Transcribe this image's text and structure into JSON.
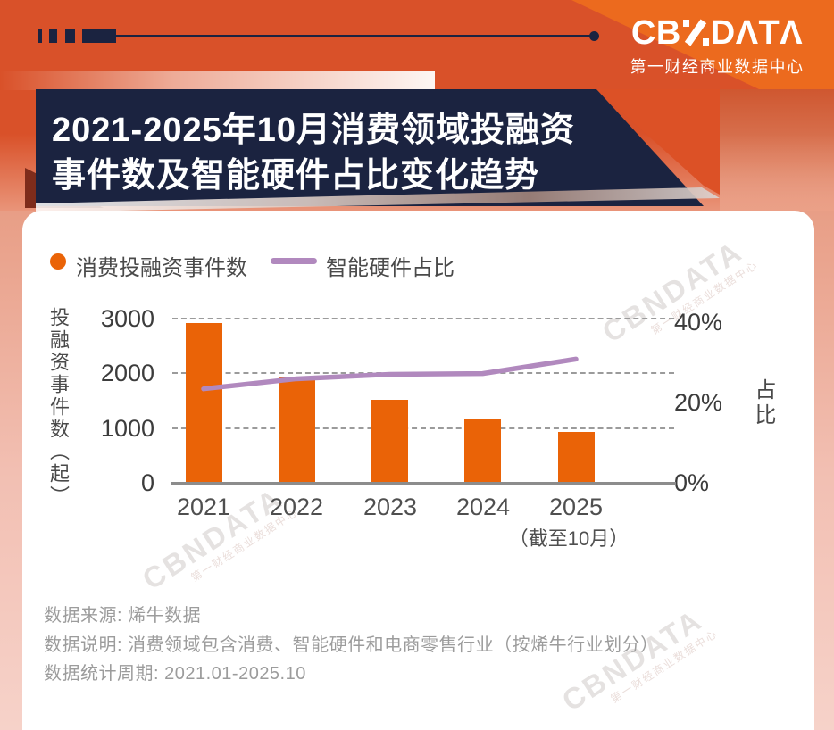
{
  "brand": {
    "logo_text": "CBNDATA",
    "logo_left": "CB",
    "logo_right": "DΛTΛ",
    "subtitle": "第一财经商业数据中心"
  },
  "header": {
    "title_line1": "2021-2025年10月消费领域投融资",
    "title_line2": "事件数及智能硬件占比变化趋势"
  },
  "legend": {
    "bar_label": "消费投融资事件数",
    "line_label": "智能硬件占比"
  },
  "chart_data": {
    "type": "bar",
    "categories": [
      "2021",
      "2022",
      "2023",
      "2024",
      "2025"
    ],
    "category_note": "（截至10月）",
    "series": [
      {
        "name": "消费投融资事件数",
        "type": "bar",
        "axis": "left",
        "color": "#EA6307",
        "values": [
          2925,
          1935,
          1520,
          1150,
          930
        ]
      },
      {
        "name": "智能硬件占比",
        "type": "line",
        "axis": "right",
        "color": "#B189BE",
        "values": [
          23.4,
          25.9,
          27.0,
          27.2,
          30.8
        ]
      }
    ],
    "left_axis": {
      "title": "投融资事件数（起）",
      "ticks": [
        "0",
        "1000",
        "2000",
        "3000"
      ],
      "range": [
        0,
        3000
      ]
    },
    "right_axis": {
      "title": "占比",
      "ticks": [
        "0%",
        "20%",
        "40%"
      ],
      "range": [
        0,
        40
      ]
    },
    "grid": "horizontal-dashed",
    "legend_position": "top-left"
  },
  "footer": {
    "lines": [
      "数据来源: 烯牛数据",
      "数据说明: 消费领域包含消费、智能硬件和电商零售行业（按烯牛行业划分）",
      "数据统计周期: 2021.01-2025.10"
    ]
  },
  "watermark": {
    "text": "CBNDATA",
    "subtext": "第一财经商业数据中心"
  },
  "colors": {
    "bar": "#EA6307",
    "line": "#B189BE",
    "navy": "#1B2340",
    "bg_orange": "#D95129",
    "bg_orange_bright": "#EC6A1E",
    "title_text": "#FFFFFF"
  }
}
